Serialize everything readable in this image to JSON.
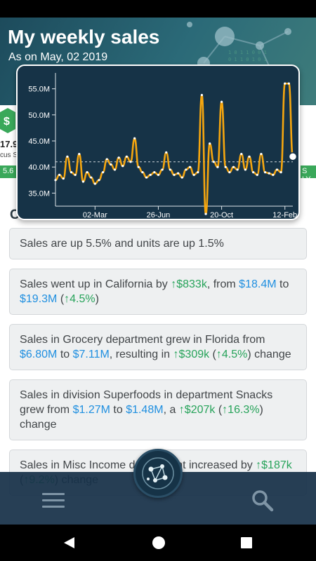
{
  "header": {
    "title": "My weekly sales",
    "subtitle": "As on May, 02 2019"
  },
  "kpi": {
    "value_fragment": "17.9",
    "label_fragment": "cus S",
    "left_pill": "5.6",
    "right_pill": "S LY"
  },
  "section": {
    "heading": "Call Outs"
  },
  "insights": [
    {
      "parts": [
        {
          "t": "Sales are up 5.5% and units are up 1.5%",
          "c": ""
        }
      ]
    },
    {
      "parts": [
        {
          "t": "Sales went up in California by ",
          "c": ""
        },
        {
          "t": "↑",
          "c": "green arrow"
        },
        {
          "t": "$833k",
          "c": "green"
        },
        {
          "t": ", from ",
          "c": ""
        },
        {
          "t": "$18.4M",
          "c": "blue"
        },
        {
          "t": " to ",
          "c": ""
        },
        {
          "t": "$19.3M",
          "c": "blue"
        },
        {
          "t": " (",
          "c": ""
        },
        {
          "t": "↑",
          "c": "green arrow"
        },
        {
          "t": "4.5%",
          "c": "green"
        },
        {
          "t": ")",
          "c": ""
        }
      ]
    },
    {
      "parts": [
        {
          "t": "Sales in Grocery department grew in Florida from ",
          "c": ""
        },
        {
          "t": "$6.80M",
          "c": "blue"
        },
        {
          "t": " to ",
          "c": ""
        },
        {
          "t": "$7.11M",
          "c": "blue"
        },
        {
          "t": ", resulting in ",
          "c": ""
        },
        {
          "t": "↑",
          "c": "green arrow"
        },
        {
          "t": "$309k",
          "c": "green"
        },
        {
          "t": " (",
          "c": ""
        },
        {
          "t": "↑",
          "c": "green arrow"
        },
        {
          "t": "4.5%",
          "c": "green"
        },
        {
          "t": ") change",
          "c": ""
        }
      ]
    },
    {
      "parts": [
        {
          "t": "Sales in division Superfoods in department Snacks grew from ",
          "c": ""
        },
        {
          "t": "$1.27M",
          "c": "blue"
        },
        {
          "t": " to ",
          "c": ""
        },
        {
          "t": "$1.48M",
          "c": "blue"
        },
        {
          "t": ", a ",
          "c": ""
        },
        {
          "t": "↑",
          "c": "green arrow"
        },
        {
          "t": "$207k",
          "c": "green"
        },
        {
          "t": " (",
          "c": ""
        },
        {
          "t": "↑",
          "c": "green arrow"
        },
        {
          "t": "16.3%",
          "c": "green"
        },
        {
          "t": ") change",
          "c": ""
        }
      ]
    },
    {
      "parts": [
        {
          "t": "Sales in Misc Income department increased by ",
          "c": ""
        },
        {
          "t": "↑",
          "c": "green arrow"
        },
        {
          "t": "$187k",
          "c": "green"
        },
        {
          "t": " (",
          "c": ""
        },
        {
          "t": "↑",
          "c": "green arrow"
        },
        {
          "t": "9.2%",
          "c": "green"
        },
        {
          "t": ") change",
          "c": ""
        }
      ]
    }
  ],
  "icons": {
    "menu": "hamburger-menu-icon",
    "search": "search-icon",
    "fab": "network-logo-icon",
    "dollar": "dollar-icon"
  },
  "colors": {
    "header": "#1d4b5c",
    "chart_bg": "#163347",
    "line": "#f5a60f",
    "point": "#ffffff",
    "up": "#27a35a",
    "amount": "#1f8fe0",
    "bottom_bar": "#173048"
  },
  "chart_data": {
    "type": "line",
    "title": "",
    "xlabel": "",
    "ylabel": "",
    "xlim": [
      0,
      60
    ],
    "ylim": [
      32.5,
      57.5
    ],
    "xticks": [
      {
        "x": 10,
        "label": "02-Mar"
      },
      {
        "x": 26,
        "label": "26-Jun"
      },
      {
        "x": 42,
        "label": "20-Oct"
      },
      {
        "x": 58,
        "label": "12-Feb"
      }
    ],
    "yticks": [
      {
        "v": 35,
        "label": "35.0M"
      },
      {
        "v": 40,
        "label": "40.0M"
      },
      {
        "v": 45,
        "label": "45.0M"
      },
      {
        "v": 50,
        "label": "50.0M"
      },
      {
        "v": 55,
        "label": "55.0M"
      }
    ],
    "reference_y": 41.0,
    "series": [
      {
        "values": [
          37.5,
          38.5,
          37.8,
          42.0,
          39.0,
          38.5,
          42.5,
          37.2,
          39.0,
          38.0,
          36.8,
          37.5,
          39.0,
          41.5,
          40.5,
          39.5,
          41.8,
          40.2,
          42.0,
          41.0,
          45.5,
          40.0,
          39.0,
          38.0,
          38.5,
          39.0,
          38.5,
          39.5,
          42.8,
          39.5,
          38.5,
          38.8,
          38.0,
          39.5,
          40.0,
          38.5,
          39.0,
          53.8,
          31.0,
          44.5,
          41.0,
          40.0,
          52.5,
          40.0,
          39.0,
          40.0,
          39.5,
          42.5,
          39.5,
          42.0,
          39.0,
          38.5,
          42.5,
          39.0,
          38.8,
          38.5,
          39.5,
          39.0,
          56.0,
          56.0,
          42.0
        ]
      }
    ],
    "highlight_last": true
  }
}
